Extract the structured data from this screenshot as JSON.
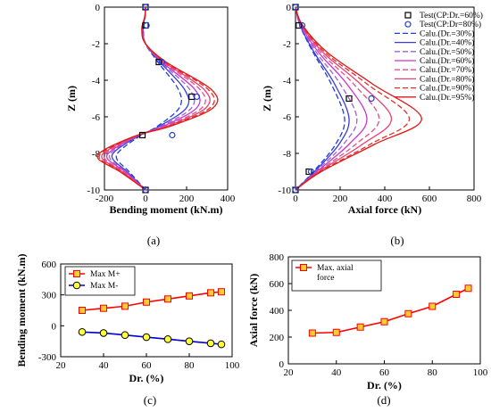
{
  "chart_data": [
    {
      "type": "line",
      "panel": "a",
      "caption": "(a)",
      "xlabel": "Bending moment (kN.m)",
      "ylabel": "Z (m)",
      "xlim": [
        -200,
        400
      ],
      "ylim": [
        -10,
        0
      ],
      "xticks": [
        "-200",
        "0",
        "200",
        "400"
      ],
      "yticks": [
        "0",
        "-2",
        "-4",
        "-6",
        "-8",
        "-10"
      ],
      "grid": false,
      "series": [
        {
          "name": "Test(CP:Dr.=60%)",
          "marker": "square",
          "x": [
            0,
            0,
            65,
            225,
            -15,
            0
          ],
          "y": [
            0,
            -1,
            -3,
            -4.9,
            -7,
            -10
          ]
        },
        {
          "name": "Test(CP:Dr=80%)",
          "marker": "circle",
          "x": [
            0,
            5,
            80,
            250,
            130,
            0
          ],
          "y": [
            0,
            -1,
            -3,
            -4.9,
            -7,
            -10
          ]
        },
        {
          "name": "Calu.(Dr.=30%)",
          "dash": "6,3",
          "color": "#1f3fd6",
          "amp": 0.55,
          "x": [
            0,
            -2,
            -10,
            0,
            60,
            160,
            165,
            60,
            -20,
            -120,
            -140,
            -80,
            0
          ],
          "y": [
            0,
            -0.5,
            -1.2,
            -2,
            -3,
            -4.5,
            -5.5,
            -6.5,
            -7,
            -7.8,
            -8.3,
            -9,
            -10
          ]
        },
        {
          "name": "Calu.(Dr.=40%)",
          "dash": "",
          "color": "#3a3adf",
          "amp": 0.65,
          "x": [
            0,
            -2,
            -12,
            0,
            70,
            190,
            200,
            70,
            -25,
            -140,
            -160,
            -90,
            0
          ],
          "y": [
            0,
            -0.5,
            -1.2,
            -2,
            -3,
            -4.5,
            -5.5,
            -6.5,
            -7,
            -7.8,
            -8.3,
            -9,
            -10
          ]
        },
        {
          "name": "Calu.(Dr.=50%)",
          "dash": "6,3",
          "color": "#a060d0",
          "amp": 0.72,
          "x": [
            0,
            -2,
            -13,
            0,
            75,
            215,
            225,
            80,
            -28,
            -150,
            -172,
            -95,
            0
          ],
          "y": [
            0,
            -0.5,
            -1.2,
            -2,
            -3,
            -4.5,
            -5.5,
            -6.5,
            -7,
            -7.8,
            -8.3,
            -9,
            -10
          ]
        },
        {
          "name": "Calu.(Dr.=60%)",
          "dash": "",
          "color": "#cc33cc",
          "amp": 0.8,
          "x": [
            0,
            -3,
            -14,
            0,
            80,
            240,
            250,
            90,
            -30,
            -160,
            -185,
            -100,
            0
          ],
          "y": [
            0,
            -0.5,
            -1.2,
            -2,
            -3,
            -4.5,
            -5.5,
            -6.5,
            -7,
            -7.8,
            -8.3,
            -9,
            -10
          ]
        },
        {
          "name": "Calu.(Dr.=70%)",
          "dash": "6,3",
          "color": "#e0508a",
          "amp": 0.86,
          "x": [
            0,
            -3,
            -15,
            0,
            85,
            265,
            275,
            100,
            -32,
            -170,
            -198,
            -108,
            0
          ],
          "y": [
            0,
            -0.5,
            -1.2,
            -2,
            -3,
            -4.5,
            -5.5,
            -6.5,
            -7,
            -7.8,
            -8.3,
            -9,
            -10
          ]
        },
        {
          "name": "Calu.(Dr.=80%)",
          "dash": "",
          "color": "#e84070",
          "amp": 0.92,
          "x": [
            0,
            -3,
            -16,
            0,
            90,
            285,
            295,
            110,
            -34,
            -180,
            -210,
            -114,
            0
          ],
          "y": [
            0,
            -0.5,
            -1.2,
            -2,
            -3,
            -4.5,
            -5.5,
            -6.5,
            -7,
            -7.8,
            -8.3,
            -9,
            -10
          ]
        },
        {
          "name": "Calu.(Dr.=90%)",
          "dash": "6,3",
          "color": "#e0302c",
          "amp": 0.97,
          "x": [
            0,
            -3,
            -17,
            0,
            95,
            305,
            315,
            118,
            -36,
            -190,
            -222,
            -120,
            0
          ],
          "y": [
            0,
            -0.5,
            -1.2,
            -2,
            -3,
            -4.5,
            -5.5,
            -6.5,
            -7,
            -7.8,
            -8.3,
            -9,
            -10
          ]
        },
        {
          "name": "Calu.(Dr.=95%)",
          "dash": "",
          "color": "#e01818",
          "amp": 1.0,
          "x": [
            0,
            -3,
            -18,
            0,
            100,
            320,
            330,
            125,
            -38,
            -200,
            -230,
            -125,
            0
          ],
          "y": [
            0,
            -0.5,
            -1.2,
            -2,
            -3,
            -4.5,
            -5.5,
            -6.5,
            -7,
            -7.8,
            -8.3,
            -9,
            -10
          ]
        }
      ]
    },
    {
      "type": "line",
      "panel": "b",
      "caption": "(b)",
      "xlabel": "Axial force (kN)",
      "ylabel": "Z (m)",
      "xlim": [
        0,
        800
      ],
      "ylim": [
        -10,
        0
      ],
      "xticks": [
        "0",
        "200",
        "400",
        "600",
        "800"
      ],
      "yticks": [
        "0",
        "-2",
        "-4",
        "-6",
        "-8",
        "-10"
      ],
      "grid": false,
      "legend": "top-right",
      "series": [
        {
          "name": "Test(CP:Dr.=60%)",
          "marker": "square",
          "x": [
            0,
            15,
            240,
            60,
            0
          ],
          "y": [
            0,
            -1,
            -5,
            -9,
            -10
          ]
        },
        {
          "name": "Test(CP:Dr=80%)",
          "marker": "circle",
          "x": [
            0,
            30,
            340,
            70,
            0
          ],
          "y": [
            0,
            -1,
            -5,
            -9,
            -10
          ]
        },
        {
          "name": "Calu.(Dr.=30%)",
          "dash": "6,3",
          "color": "#1f3fd6",
          "x": [
            0,
            20,
            80,
            160,
            220,
            180,
            80,
            0
          ],
          "y": [
            0,
            -1,
            -2.5,
            -4.2,
            -6.1,
            -7.5,
            -9,
            -10
          ]
        },
        {
          "name": "Calu.(Dr.=40%)",
          "dash": "",
          "color": "#3a3adf",
          "x": [
            0,
            21,
            85,
            175,
            240,
            195,
            85,
            0
          ],
          "y": [
            0,
            -1,
            -2.5,
            -4.2,
            -6.1,
            -7.5,
            -9,
            -10
          ]
        },
        {
          "name": "Calu.(Dr.=50%)",
          "dash": "6,3",
          "color": "#a060d0",
          "x": [
            0,
            22,
            95,
            200,
            275,
            215,
            90,
            0
          ],
          "y": [
            0,
            -1,
            -2.5,
            -4.2,
            -6.1,
            -7.5,
            -9,
            -10
          ]
        },
        {
          "name": "Calu.(Dr.=60%)",
          "dash": "",
          "color": "#cc33cc",
          "x": [
            0,
            24,
            105,
            230,
            320,
            240,
            95,
            0
          ],
          "y": [
            0,
            -1,
            -2.5,
            -4.2,
            -6.1,
            -7.5,
            -9,
            -10
          ]
        },
        {
          "name": "Calu.(Dr.=70%)",
          "dash": "6,3",
          "color": "#e0508a",
          "x": [
            0,
            26,
            115,
            260,
            375,
            270,
            100,
            0
          ],
          "y": [
            0,
            -1,
            -2.5,
            -4.2,
            -6.1,
            -7.5,
            -9,
            -10
          ]
        },
        {
          "name": "Calu.(Dr.=80%)",
          "dash": "",
          "color": "#e84070",
          "x": [
            0,
            28,
            125,
            290,
            430,
            300,
            105,
            0
          ],
          "y": [
            0,
            -1,
            -2.5,
            -4.2,
            -6.1,
            -7.5,
            -9,
            -10
          ]
        },
        {
          "name": "Calu.(Dr.=90%)",
          "dash": "6,3",
          "color": "#e0302c",
          "x": [
            0,
            30,
            135,
            320,
            510,
            335,
            110,
            0
          ],
          "y": [
            0,
            -1,
            -2.5,
            -4.2,
            -6.1,
            -7.5,
            -9,
            -10
          ]
        },
        {
          "name": "Calu.(Dr.=95%)",
          "dash": "",
          "color": "#e01818",
          "x": [
            0,
            32,
            145,
            345,
            565,
            355,
            115,
            0
          ],
          "y": [
            0,
            -1,
            -2.5,
            -4.2,
            -6.1,
            -7.5,
            -9,
            -10
          ]
        }
      ]
    },
    {
      "type": "line",
      "panel": "c",
      "caption": "(c)",
      "xlabel": "Dr. (%)",
      "ylabel": "Bending moment (kN.m)",
      "xlim": [
        20,
        100
      ],
      "ylim": [
        -300,
        600
      ],
      "xticks": [
        "20",
        "40",
        "60",
        "80",
        "100"
      ],
      "yticks": [
        "600",
        "300",
        "0",
        "-300"
      ],
      "grid": false,
      "legend": "top-left",
      "x": [
        30,
        40,
        50,
        60,
        70,
        80,
        90,
        95
      ],
      "series": [
        {
          "name": "Max M+",
          "marker": "square",
          "color": "#ff0000",
          "fill": "#ffcc33",
          "values": [
            150,
            170,
            190,
            230,
            260,
            290,
            320,
            330
          ]
        },
        {
          "name": "Max M-",
          "marker": "circle",
          "color": "#0000cc",
          "fill": "#ffff33",
          "values": [
            -60,
            -70,
            -90,
            -110,
            -130,
            -150,
            -170,
            -180
          ]
        }
      ]
    },
    {
      "type": "line",
      "panel": "d",
      "caption": "(d)",
      "xlabel": "Dr. (%)",
      "ylabel": "Axial force (kN)",
      "xlim": [
        20,
        100
      ],
      "ylim": [
        0,
        800
      ],
      "xticks": [
        "20",
        "40",
        "60",
        "80",
        "100"
      ],
      "yticks": [
        "0",
        "200",
        "400",
        "600",
        "800"
      ],
      "grid": false,
      "legend": "top-left",
      "x": [
        30,
        40,
        50,
        60,
        70,
        80,
        90,
        95
      ],
      "series": [
        {
          "name": "Max. axial force",
          "name_lines": [
            "Max. axial",
            "force"
          ],
          "marker": "square",
          "color": "#ff0000",
          "fill": "#ffcc33",
          "values": [
            230,
            235,
            275,
            315,
            375,
            430,
            520,
            565
          ]
        }
      ]
    }
  ]
}
